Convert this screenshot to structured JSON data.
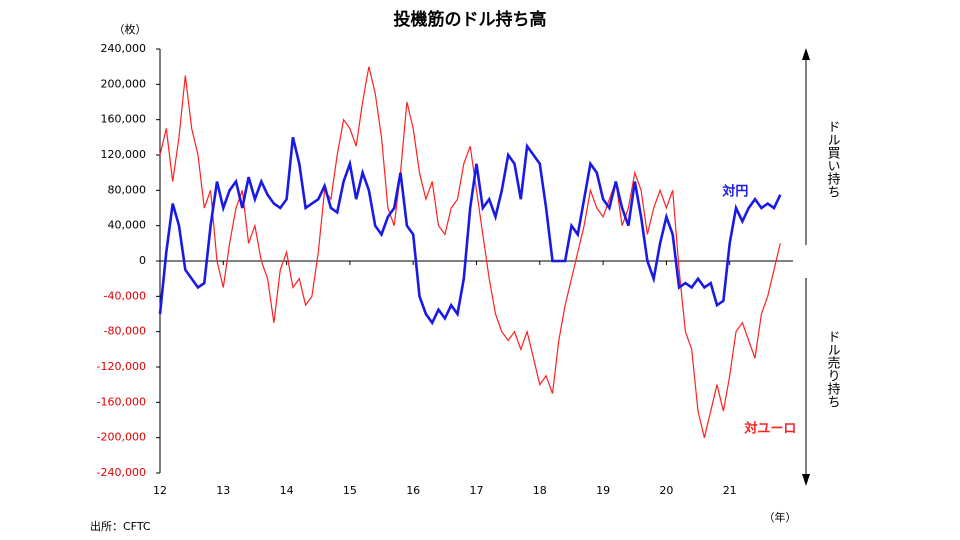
{
  "chart_data": {
    "type": "line",
    "title": "投機筋のドル持ち高",
    "y_unit": "（枚）",
    "x_unit": "（年）",
    "source": "出所：CFTC",
    "upper_note": "ドル買い持ち",
    "lower_note": "ドル売り持ち",
    "xlim": [
      12,
      22
    ],
    "xticks": [
      12,
      13,
      14,
      15,
      16,
      17,
      18,
      19,
      20,
      21
    ],
    "ylim": [
      -240000,
      240000
    ],
    "yticks": [
      {
        "value": 240000,
        "label": "240,000"
      },
      {
        "value": 200000,
        "label": "200,000"
      },
      {
        "value": 160000,
        "label": "160,000"
      },
      {
        "value": 120000,
        "label": "120,000"
      },
      {
        "value": 80000,
        "label": "80,000"
      },
      {
        "value": 40000,
        "label": "40,000"
      },
      0,
      {
        "value": -40000,
        "label": "-40,000"
      },
      {
        "value": -80000,
        "label": "-80,000"
      },
      {
        "value": -120000,
        "label": "-120,000"
      },
      {
        "value": -160000,
        "label": "-160,000"
      },
      {
        "value": -200000,
        "label": "-200,000"
      },
      {
        "value": -240000,
        "label": "-240,000"
      }
    ],
    "x": [
      12.0,
      12.1,
      12.2,
      12.3,
      12.4,
      12.5,
      12.6,
      12.7,
      12.8,
      12.9,
      13.0,
      13.1,
      13.2,
      13.3,
      13.4,
      13.5,
      13.6,
      13.7,
      13.8,
      13.9,
      14.0,
      14.1,
      14.2,
      14.3,
      14.4,
      14.5,
      14.6,
      14.7,
      14.8,
      14.9,
      15.0,
      15.1,
      15.2,
      15.3,
      15.4,
      15.5,
      15.6,
      15.7,
      15.8,
      15.9,
      16.0,
      16.1,
      16.2,
      16.3,
      16.4,
      16.5,
      16.6,
      16.7,
      16.8,
      16.9,
      17.0,
      17.1,
      17.2,
      17.3,
      17.4,
      17.5,
      17.6,
      17.7,
      17.8,
      17.9,
      18.0,
      18.1,
      18.2,
      18.3,
      18.4,
      18.5,
      18.6,
      18.7,
      18.8,
      18.9,
      19.0,
      19.1,
      19.2,
      19.3,
      19.4,
      19.5,
      19.6,
      19.7,
      19.8,
      19.9,
      20.0,
      20.1,
      20.2,
      20.3,
      20.4,
      20.5,
      20.6,
      20.7,
      20.8,
      20.9,
      21.0,
      21.1,
      21.2,
      21.3,
      21.4,
      21.5,
      21.6,
      21.7,
      21.8
    ],
    "series": [
      {
        "name": "対円",
        "color": "#1a1ae6",
        "values": [
          -60000,
          10000,
          65000,
          40000,
          -10000,
          -20000,
          -30000,
          -25000,
          40000,
          90000,
          60000,
          80000,
          90000,
          60000,
          95000,
          70000,
          90000,
          75000,
          65000,
          60000,
          70000,
          140000,
          110000,
          60000,
          65000,
          70000,
          85000,
          60000,
          55000,
          90000,
          110000,
          70000,
          100000,
          80000,
          40000,
          30000,
          50000,
          60000,
          100000,
          40000,
          30000,
          -40000,
          -60000,
          -70000,
          -55000,
          -65000,
          -50000,
          -60000,
          -20000,
          60000,
          110000,
          60000,
          70000,
          50000,
          80000,
          120000,
          110000,
          70000,
          130000,
          120000,
          110000,
          60000,
          0,
          0,
          0,
          40000,
          30000,
          70000,
          110000,
          100000,
          70000,
          60000,
          90000,
          60000,
          40000,
          90000,
          50000,
          0,
          -20000,
          20000,
          50000,
          30000,
          -30000,
          -25000,
          -30000,
          -20000,
          -30000,
          -25000,
          -50000,
          -45000,
          20000,
          60000,
          45000,
          60000,
          70000,
          60000,
          65000,
          60000,
          75000
        ]
      },
      {
        "name": "対ユーロ",
        "color": "#ff2020",
        "values": [
          120000,
          150000,
          90000,
          140000,
          210000,
          150000,
          120000,
          60000,
          80000,
          0,
          -30000,
          20000,
          60000,
          80000,
          20000,
          40000,
          0,
          -20000,
          -70000,
          -10000,
          10000,
          -30000,
          -20000,
          -50000,
          -40000,
          10000,
          80000,
          70000,
          120000,
          160000,
          150000,
          130000,
          180000,
          220000,
          190000,
          140000,
          60000,
          40000,
          100000,
          180000,
          150000,
          100000,
          70000,
          90000,
          40000,
          30000,
          60000,
          70000,
          110000,
          130000,
          80000,
          30000,
          -20000,
          -60000,
          -80000,
          -90000,
          -80000,
          -100000,
          -80000,
          -110000,
          -140000,
          -130000,
          -150000,
          -90000,
          -50000,
          -20000,
          10000,
          40000,
          80000,
          60000,
          50000,
          70000,
          90000,
          40000,
          60000,
          100000,
          80000,
          30000,
          60000,
          80000,
          60000,
          80000,
          -10000,
          -80000,
          -100000,
          -170000,
          -200000,
          -170000,
          -140000,
          -170000,
          -130000,
          -80000,
          -70000,
          -90000,
          -110000,
          -60000,
          -40000,
          -10000,
          20000
        ]
      }
    ]
  }
}
